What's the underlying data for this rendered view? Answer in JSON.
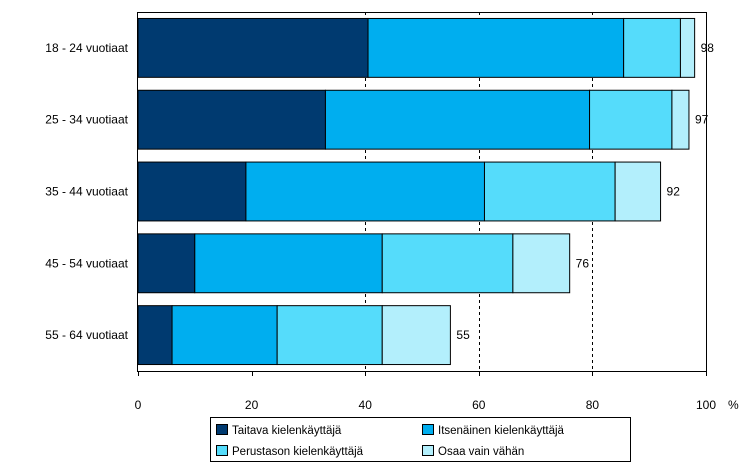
{
  "chart_data": {
    "type": "bar",
    "orientation": "horizontal",
    "stacked": true,
    "categories": [
      "18 - 24 vuotiaat",
      "25 - 34 vuotiaat",
      "35 - 44 vuotiaat",
      "45 - 54 vuotiaat",
      "55 - 64 vuotiaat"
    ],
    "series": [
      {
        "name": "Taitava kielenkäyttäjä",
        "color": "#003a70",
        "values": [
          40.5,
          33,
          19,
          10,
          6
        ]
      },
      {
        "name": "Itsenäinen kielenkäyttäjä",
        "color": "#00aeef",
        "values": [
          45,
          46.5,
          42,
          33,
          18.5
        ]
      },
      {
        "name": "Perustason kielenkäyttäjä",
        "color": "#55dcfb",
        "values": [
          10,
          14.5,
          23,
          23,
          18.5
        ]
      },
      {
        "name": "Osaa vain vähän",
        "color": "#b3effc",
        "values": [
          2.5,
          3,
          8,
          10,
          12
        ]
      }
    ],
    "totals": [
      "98",
      "97",
      "92",
      "76",
      "55"
    ],
    "x_ticks": [
      "0",
      "20",
      "40",
      "60",
      "80",
      "100"
    ],
    "x_unit": "%",
    "xlim": [
      0,
      100
    ],
    "grid": "vertical dashed at 40, 60, 80",
    "legend": "bottom"
  }
}
